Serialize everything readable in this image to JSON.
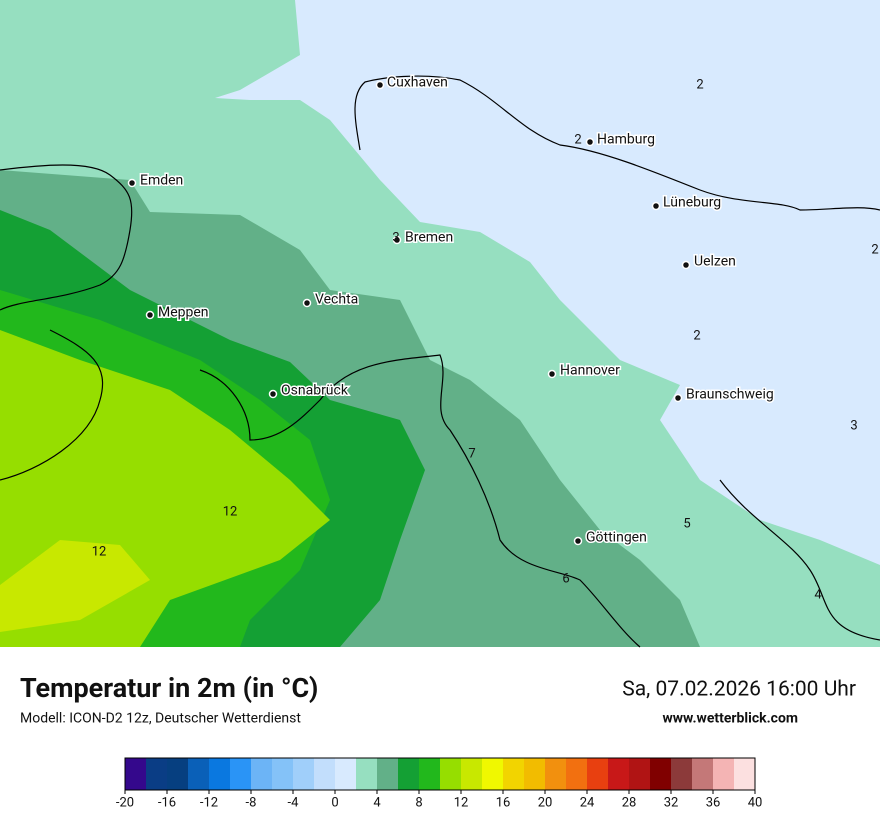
{
  "title": "Temperatur in 2m (in °C)",
  "model": "Modell: ICON-D2 12z, Deutscher Wetterdienst",
  "datetime": "Sa, 07.02.2026 16:00 Uhr",
  "website": "www.wetterblick.com",
  "cities": [
    "Cuxhaven",
    "Hamburg",
    "Emden",
    "Lüneburg",
    "Bremen",
    "Uelzen",
    "Vechta",
    "Meppen",
    "Hannover",
    "Osnabrück",
    "Braunschweig",
    "Göttingen"
  ],
  "contour_labels": [
    2,
    2,
    3,
    2,
    2,
    3,
    7,
    12,
    5,
    12,
    6,
    4
  ],
  "colorbar": {
    "ticks": [
      -20,
      -16,
      -12,
      -8,
      -4,
      0,
      4,
      8,
      12,
      16,
      20,
      24,
      28,
      32,
      36,
      40
    ],
    "colors": [
      "#34088c",
      "#0a3d85",
      "#063f80",
      "#0a60b8",
      "#0a78e0",
      "#2a94f6",
      "#6cb4f6",
      "#84c2f8",
      "#a0cffa",
      "#c2defc",
      "#d8eafe",
      "#96dfc0",
      "#62b088",
      "#14a034",
      "#22b81c",
      "#96de00",
      "#c8e800",
      "#f0f800",
      "#f2d400",
      "#f2bc00",
      "#f2900e",
      "#f27010",
      "#e84010",
      "#c81818",
      "#b01414",
      "#800000",
      "#8c3a3a",
      "#c47878",
      "#f4b4b4",
      "#fce0e0"
    ]
  }
}
